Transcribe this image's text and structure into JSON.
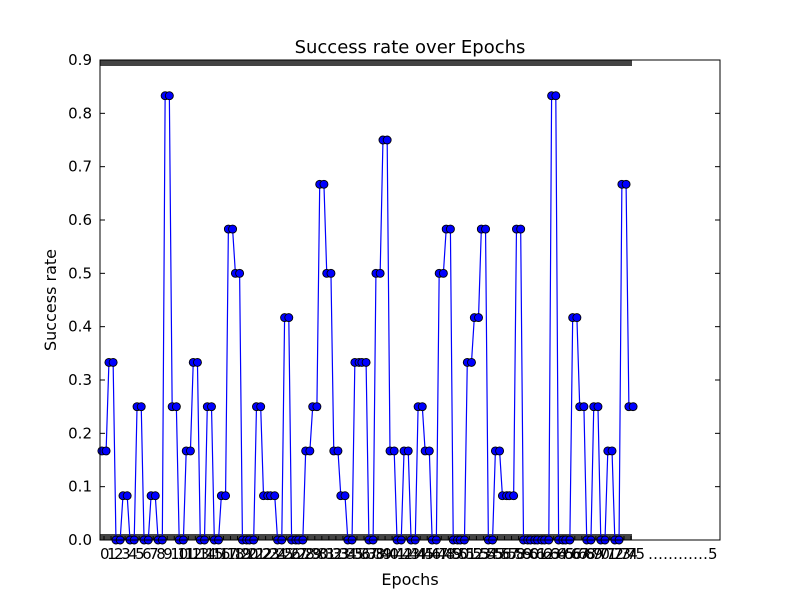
{
  "chart_data": {
    "type": "line",
    "title": "Success rate over Epochs",
    "xlabel": "Epochs",
    "ylabel": "Success rate",
    "ylim": [
      0,
      0.9
    ],
    "yticks": [
      "0.0",
      "0.1",
      "0.2",
      "0.3",
      "0.4",
      "0.5",
      "0.6",
      "0.7",
      "0.8",
      "0.9"
    ],
    "x_tick_text_right": "…………5",
    "grid": false,
    "legend": "none",
    "series": [
      {
        "color": "#0000ff",
        "values": [
          0.167,
          0.333,
          0.0,
          0.083,
          0.0,
          0.25,
          0.0,
          0.083,
          0.0,
          0.833,
          0.25,
          0.0,
          0.167,
          0.333,
          0.0,
          0.25,
          0.0,
          0.083,
          0.583,
          0.5,
          0.0,
          0.0,
          0.25,
          0.083,
          0.083,
          0.0,
          0.417,
          0.0,
          0.0,
          0.167,
          0.25,
          0.667,
          0.5,
          0.167,
          0.083,
          0.0,
          0.333,
          0.333,
          0.0,
          0.5,
          0.75,
          0.167,
          0.0,
          0.167,
          0.0,
          0.25,
          0.167,
          0.0,
          0.5,
          0.583,
          0.0,
          0.0,
          0.333,
          0.417,
          0.583,
          0.0,
          0.167,
          0.083,
          0.083,
          0.583,
          0.0,
          0.0,
          0.0,
          0.0,
          0.833,
          0.0,
          0.0,
          0.417,
          0.25,
          0.0,
          0.25,
          0.0,
          0.167,
          0.0,
          0.667,
          0.25
        ]
      }
    ]
  }
}
